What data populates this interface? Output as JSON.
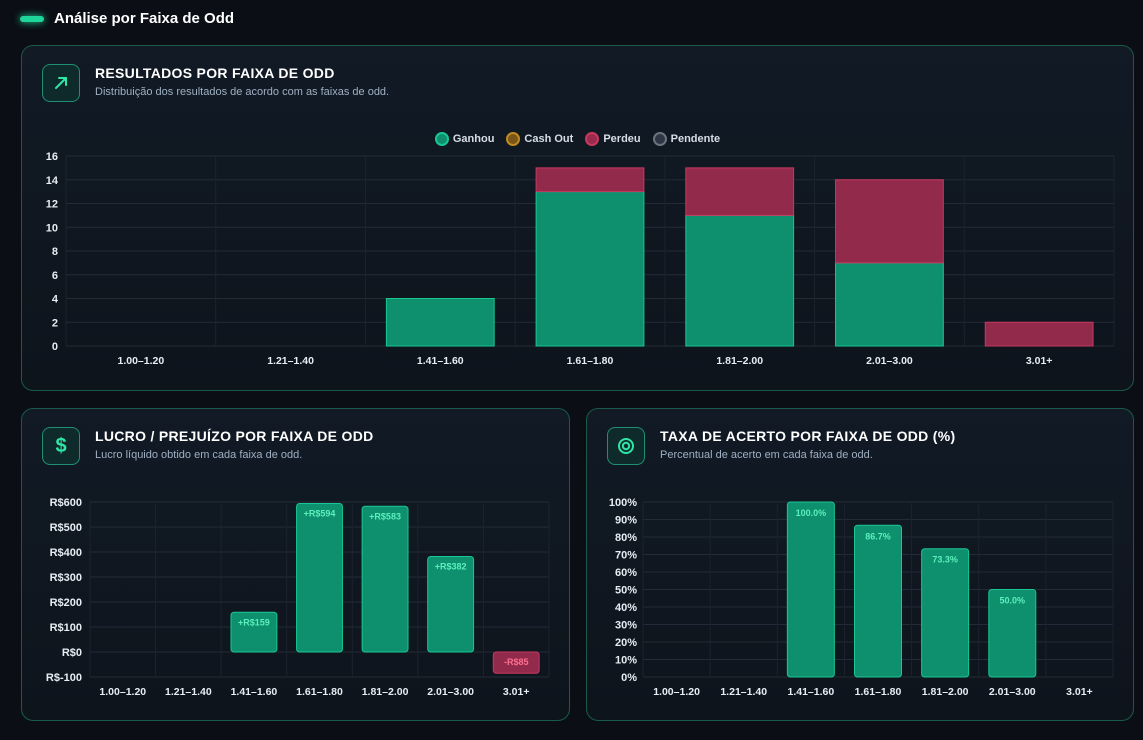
{
  "section": {
    "title": "Análise por Faixa de Odd"
  },
  "card1": {
    "title": "RESULTADOS POR FAIXA DE ODD",
    "subtitle": "Distribuição dos resultados de acordo com as faixas de odd.",
    "icon": "trending-up-icon"
  },
  "card2": {
    "title": "LUCRO / PREJUÍZO POR FAIXA DE ODD",
    "subtitle": "Lucro líquido obtido em cada faixa de odd.",
    "icon": "dollar-icon"
  },
  "card3": {
    "title": "TAXA DE ACERTO POR FAIXA DE ODD (%)",
    "subtitle": "Percentual de acerto em cada faixa de odd.",
    "icon": "target-icon"
  },
  "colors": {
    "ganhou": "#0e8f6e",
    "cashout": "#a8741a",
    "perdeu": "#9a2a4e",
    "pendente": "#3a4250",
    "accent": "#1ed69a"
  },
  "chart_data": [
    {
      "type": "bar",
      "stacked": true,
      "categories": [
        "1.00–1.20",
        "1.21–1.40",
        "1.41–1.60",
        "1.61–1.80",
        "1.81–2.00",
        "2.01–3.00",
        "3.01+"
      ],
      "series": [
        {
          "name": "Ganhou",
          "values": [
            0,
            0,
            4,
            13,
            11,
            7,
            0
          ]
        },
        {
          "name": "Cash Out",
          "values": [
            0,
            0,
            0,
            0,
            0,
            0,
            0
          ]
        },
        {
          "name": "Perdeu",
          "values": [
            0,
            0,
            0,
            2,
            4,
            7,
            2
          ]
        },
        {
          "name": "Pendente",
          "values": [
            0,
            0,
            0,
            0,
            0,
            0,
            0
          ]
        }
      ],
      "ylim": [
        0,
        16
      ],
      "yticks": [
        "0",
        "2",
        "4",
        "6",
        "8",
        "10",
        "12",
        "14",
        "16"
      ],
      "legend": "top-center",
      "grid": true
    },
    {
      "type": "bar",
      "categories": [
        "1.00–1.20",
        "1.21–1.40",
        "1.41–1.60",
        "1.61–1.80",
        "1.81–2.00",
        "2.01–3.00",
        "3.01+"
      ],
      "values": [
        0,
        0,
        159,
        594,
        583,
        382,
        -85
      ],
      "data_labels": [
        "",
        "",
        "+R$159",
        "+R$594",
        "+R$583",
        "+R$382",
        "-R$85"
      ],
      "ylim": [
        -100,
        600
      ],
      "yticks": [
        "R$-100",
        "R$0",
        "R$100",
        "R$200",
        "R$300",
        "R$400",
        "R$500",
        "R$600"
      ],
      "grid": true
    },
    {
      "type": "bar",
      "categories": [
        "1.00–1.20",
        "1.21–1.40",
        "1.41–1.60",
        "1.61–1.80",
        "1.81–2.00",
        "2.01–3.00",
        "3.01+"
      ],
      "values": [
        0,
        0,
        100,
        86.7,
        73.3,
        50,
        0
      ],
      "data_labels": [
        "",
        "",
        "100.0%",
        "86.7%",
        "73.3%",
        "50.0%",
        ""
      ],
      "ylim": [
        0,
        100
      ],
      "yticks": [
        "0%",
        "10%",
        "20%",
        "30%",
        "40%",
        "50%",
        "60%",
        "70%",
        "80%",
        "90%",
        "100%"
      ],
      "grid": true
    }
  ]
}
